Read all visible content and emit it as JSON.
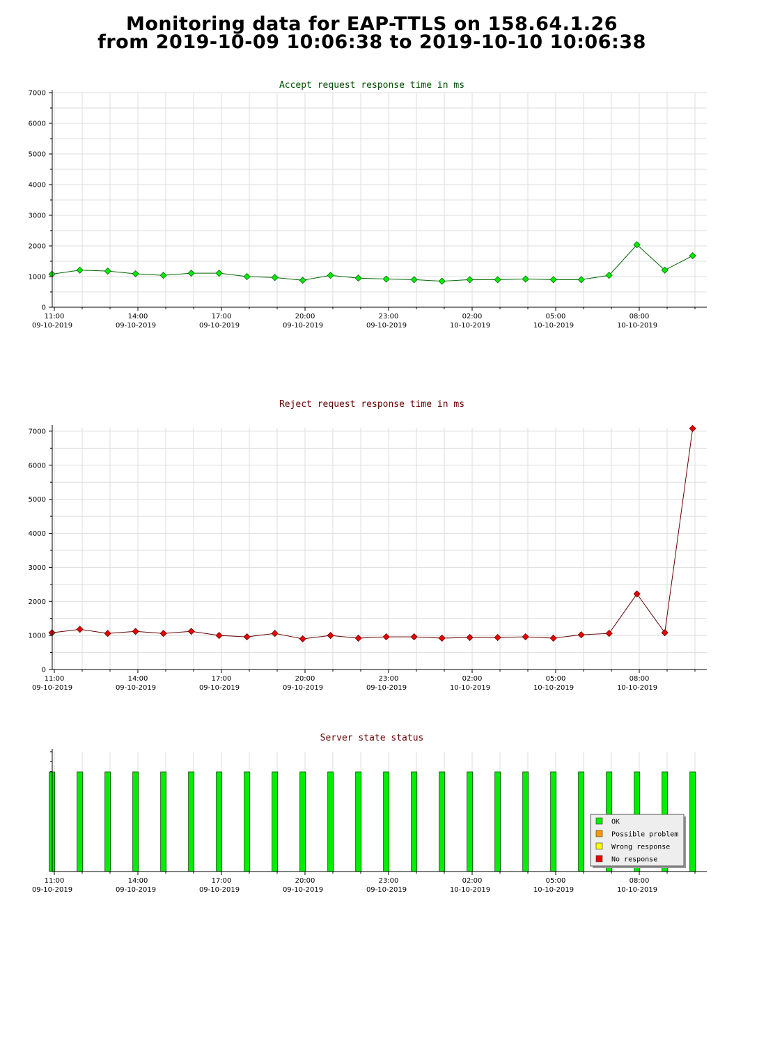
{
  "title": {
    "line1": "Monitoring data for EAP-TTLS on 158.64.1.26",
    "line2": "from 2019-10-09 10:06:38 to 2019-10-10 10:06:38"
  },
  "colors": {
    "accept_marker": "#00ee00",
    "accept_line": "#006600",
    "accept_title": "#004d00",
    "reject_marker": "#ee0000",
    "reject_line": "#660000",
    "reject_title": "#660000",
    "status_title": "#660000",
    "grid": "#dddddd"
  },
  "x_ticks": [
    {
      "time": "11:00",
      "date": "09-10-2019"
    },
    {
      "time": "14:00",
      "date": "09-10-2019"
    },
    {
      "time": "17:00",
      "date": "09-10-2019"
    },
    {
      "time": "20:00",
      "date": "09-10-2019"
    },
    {
      "time": "23:00",
      "date": "09-10-2019"
    },
    {
      "time": "02:00",
      "date": "10-10-2019"
    },
    {
      "time": "05:00",
      "date": "10-10-2019"
    },
    {
      "time": "08:00",
      "date": "10-10-2019"
    }
  ],
  "chart_data": [
    {
      "type": "line",
      "title": "Accept request response time in ms",
      "xlabel": "",
      "ylabel": "",
      "x_start": "2019-10-09 10:06:38",
      "x_end": "2019-10-10 10:06:38",
      "x": [
        "2019-10-09 10:55",
        "2019-10-09 11:55",
        "2019-10-09 12:55",
        "2019-10-09 13:55",
        "2019-10-09 14:55",
        "2019-10-09 15:55",
        "2019-10-09 16:55",
        "2019-10-09 17:55",
        "2019-10-09 18:55",
        "2019-10-09 19:55",
        "2019-10-09 20:55",
        "2019-10-09 21:55",
        "2019-10-09 22:55",
        "2019-10-09 23:55",
        "2019-10-10 00:55",
        "2019-10-10 01:55",
        "2019-10-10 02:55",
        "2019-10-10 03:55",
        "2019-10-10 04:55",
        "2019-10-10 05:55",
        "2019-10-10 06:55",
        "2019-10-10 07:55",
        "2019-10-10 08:55",
        "2019-10-10 09:55"
      ],
      "values": [
        1080,
        1210,
        1180,
        1090,
        1040,
        1110,
        1110,
        1000,
        970,
        880,
        1040,
        950,
        920,
        900,
        850,
        900,
        900,
        920,
        900,
        900,
        1040,
        2040,
        1210,
        1680
      ],
      "ylim": [
        0,
        7000
      ],
      "yticks": [
        "0",
        "1000",
        "2000",
        "3000",
        "4000",
        "5000",
        "6000",
        "7000"
      ],
      "grid": true
    },
    {
      "type": "line",
      "title": "Reject request response time in ms",
      "xlabel": "",
      "ylabel": "",
      "x_start": "2019-10-09 10:06:38",
      "x_end": "2019-10-10 10:06:38",
      "x": [
        "2019-10-09 10:55",
        "2019-10-09 11:55",
        "2019-10-09 12:55",
        "2019-10-09 13:55",
        "2019-10-09 14:55",
        "2019-10-09 15:55",
        "2019-10-09 16:55",
        "2019-10-09 17:55",
        "2019-10-09 18:55",
        "2019-10-09 19:55",
        "2019-10-09 20:55",
        "2019-10-09 21:55",
        "2019-10-09 22:55",
        "2019-10-09 23:55",
        "2019-10-10 00:55",
        "2019-10-10 01:55",
        "2019-10-10 02:55",
        "2019-10-10 03:55",
        "2019-10-10 04:55",
        "2019-10-10 05:55",
        "2019-10-10 06:55",
        "2019-10-10 07:55",
        "2019-10-10 08:55",
        "2019-10-10 09:55"
      ],
      "values": [
        1080,
        1180,
        1060,
        1120,
        1060,
        1120,
        1000,
        960,
        1060,
        900,
        1000,
        920,
        960,
        960,
        920,
        940,
        940,
        960,
        920,
        1020,
        1060,
        2220,
        1080,
        7080
      ],
      "ylim": [
        0,
        7100
      ],
      "yticks": [
        "0",
        "1000",
        "2000",
        "3000",
        "4000",
        "5000",
        "6000",
        "7000"
      ],
      "grid": true
    },
    {
      "type": "bar",
      "title": "Server state status",
      "x_start": "2019-10-09 10:06:38",
      "x_end": "2019-10-10 10:06:38",
      "x": [
        "2019-10-09 10:55",
        "2019-10-09 11:55",
        "2019-10-09 12:55",
        "2019-10-09 13:55",
        "2019-10-09 14:55",
        "2019-10-09 15:55",
        "2019-10-09 16:55",
        "2019-10-09 17:55",
        "2019-10-09 18:55",
        "2019-10-09 19:55",
        "2019-10-09 20:55",
        "2019-10-09 21:55",
        "2019-10-09 22:55",
        "2019-10-09 23:55",
        "2019-10-10 00:55",
        "2019-10-10 01:55",
        "2019-10-10 02:55",
        "2019-10-10 03:55",
        "2019-10-10 04:55",
        "2019-10-10 05:55",
        "2019-10-10 06:55",
        "2019-10-10 07:55",
        "2019-10-10 08:55",
        "2019-10-10 09:55"
      ],
      "states": [
        "OK",
        "OK",
        "OK",
        "OK",
        "OK",
        "OK",
        "OK",
        "OK",
        "OK",
        "OK",
        "OK",
        "OK",
        "OK",
        "OK",
        "OK",
        "OK",
        "OK",
        "OK",
        "OK",
        "OK",
        "OK",
        "OK",
        "OK",
        "OK"
      ],
      "legend": [
        {
          "label": "OK",
          "color": "#00ee00"
        },
        {
          "label": "Possible problem",
          "color": "#ff9900"
        },
        {
          "label": "Wrong response",
          "color": "#ffff00"
        },
        {
          "label": "No response",
          "color": "#ee0000"
        }
      ],
      "legend_position": "bottom-right"
    }
  ]
}
